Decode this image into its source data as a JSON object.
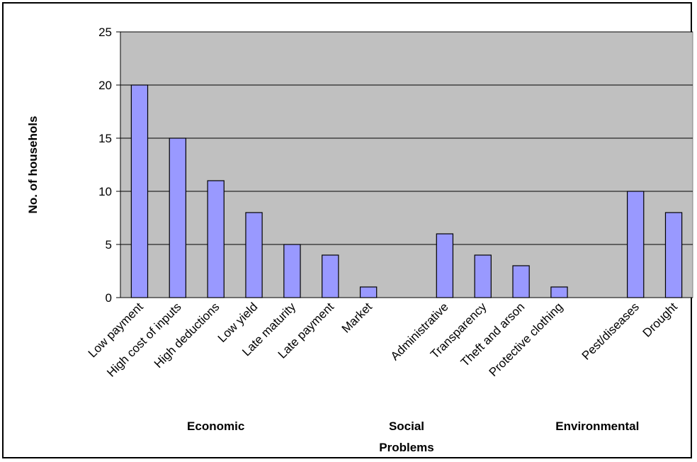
{
  "chart_data": {
    "type": "bar",
    "title": "",
    "xlabel": "Problems",
    "ylabel": "No. of househols",
    "ylim": [
      0,
      25
    ],
    "yticks": [
      0,
      5,
      10,
      15,
      20,
      25
    ],
    "grid": true,
    "legend": "none",
    "colors": {
      "plot_background": "#c0c0c0",
      "bar_fill": "#9999ff",
      "bar_stroke": "#000000",
      "gridline": "#000000"
    },
    "categories": [
      "Low payment",
      "High cost of inputs",
      "High deductions",
      "Low yield",
      "Late maturity",
      "Late payment",
      "Market",
      "",
      "Administrative",
      "Transparency",
      "Theft and arson",
      "Protective clothing",
      "",
      "Pest/diseases",
      "Drought"
    ],
    "values": [
      20,
      15,
      11,
      8,
      5,
      4,
      1,
      null,
      6,
      4,
      3,
      1,
      null,
      10,
      8
    ],
    "groups": [
      {
        "label": "Economic",
        "center_index": 2
      },
      {
        "label": "Social",
        "center_index": 7
      },
      {
        "label": "Environmental",
        "center_index": 12
      }
    ]
  }
}
